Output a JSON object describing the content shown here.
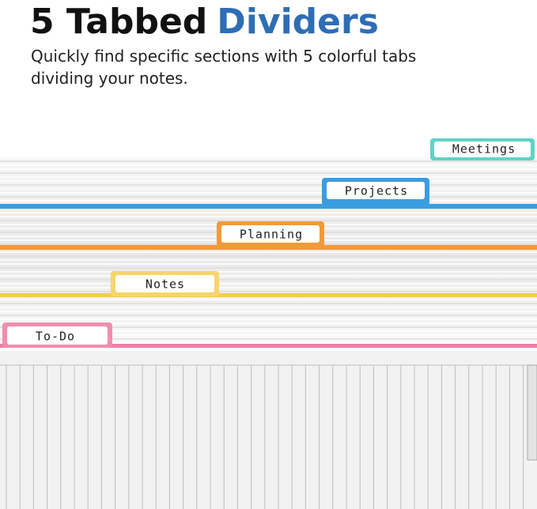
{
  "header": {
    "title_part1": "5 Tabbed",
    "title_part2": "Dividers",
    "subtitle_lines": [
      "Quickly find specific sections with 5  colorful tabs",
      "dividing your notes."
    ]
  },
  "tabs": [
    {
      "label": "Meetings"
    },
    {
      "label": "Projects"
    },
    {
      "label": "Planning"
    },
    {
      "label": "Notes"
    },
    {
      "label": "To-Do"
    }
  ]
}
